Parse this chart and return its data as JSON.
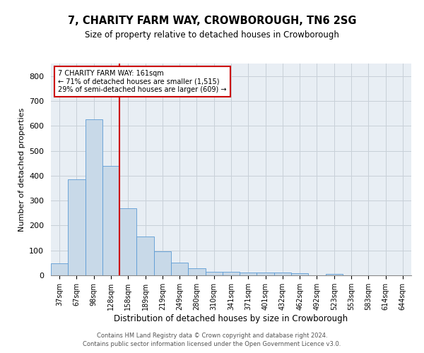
{
  "title": "7, CHARITY FARM WAY, CROWBOROUGH, TN6 2SG",
  "subtitle": "Size of property relative to detached houses in Crowborough",
  "xlabel": "Distribution of detached houses by size in Crowborough",
  "ylabel": "Number of detached properties",
  "footer_line1": "Contains HM Land Registry data © Crown copyright and database right 2024.",
  "footer_line2": "Contains public sector information licensed under the Open Government Licence v3.0.",
  "categories": [
    "37sqm",
    "67sqm",
    "98sqm",
    "128sqm",
    "158sqm",
    "189sqm",
    "219sqm",
    "249sqm",
    "280sqm",
    "310sqm",
    "341sqm",
    "371sqm",
    "401sqm",
    "432sqm",
    "462sqm",
    "492sqm",
    "523sqm",
    "553sqm",
    "583sqm",
    "614sqm",
    "644sqm"
  ],
  "values": [
    47,
    385,
    625,
    440,
    270,
    155,
    97,
    52,
    28,
    15,
    15,
    10,
    10,
    10,
    8,
    0,
    7,
    0,
    0,
    0,
    0
  ],
  "bar_color": "#c8d9e8",
  "bar_edge_color": "#5b9bd5",
  "grid_color": "#c8d0d8",
  "background_color": "#e8eef4",
  "vline_x": 3.5,
  "vline_color": "#cc0000",
  "annotation_text": "7 CHARITY FARM WAY: 161sqm\n← 71% of detached houses are smaller (1,515)\n29% of semi-detached houses are larger (609) →",
  "annotation_box_color": "#cc0000",
  "ylim": [
    0,
    850
  ],
  "yticks": [
    0,
    100,
    200,
    300,
    400,
    500,
    600,
    700,
    800
  ]
}
